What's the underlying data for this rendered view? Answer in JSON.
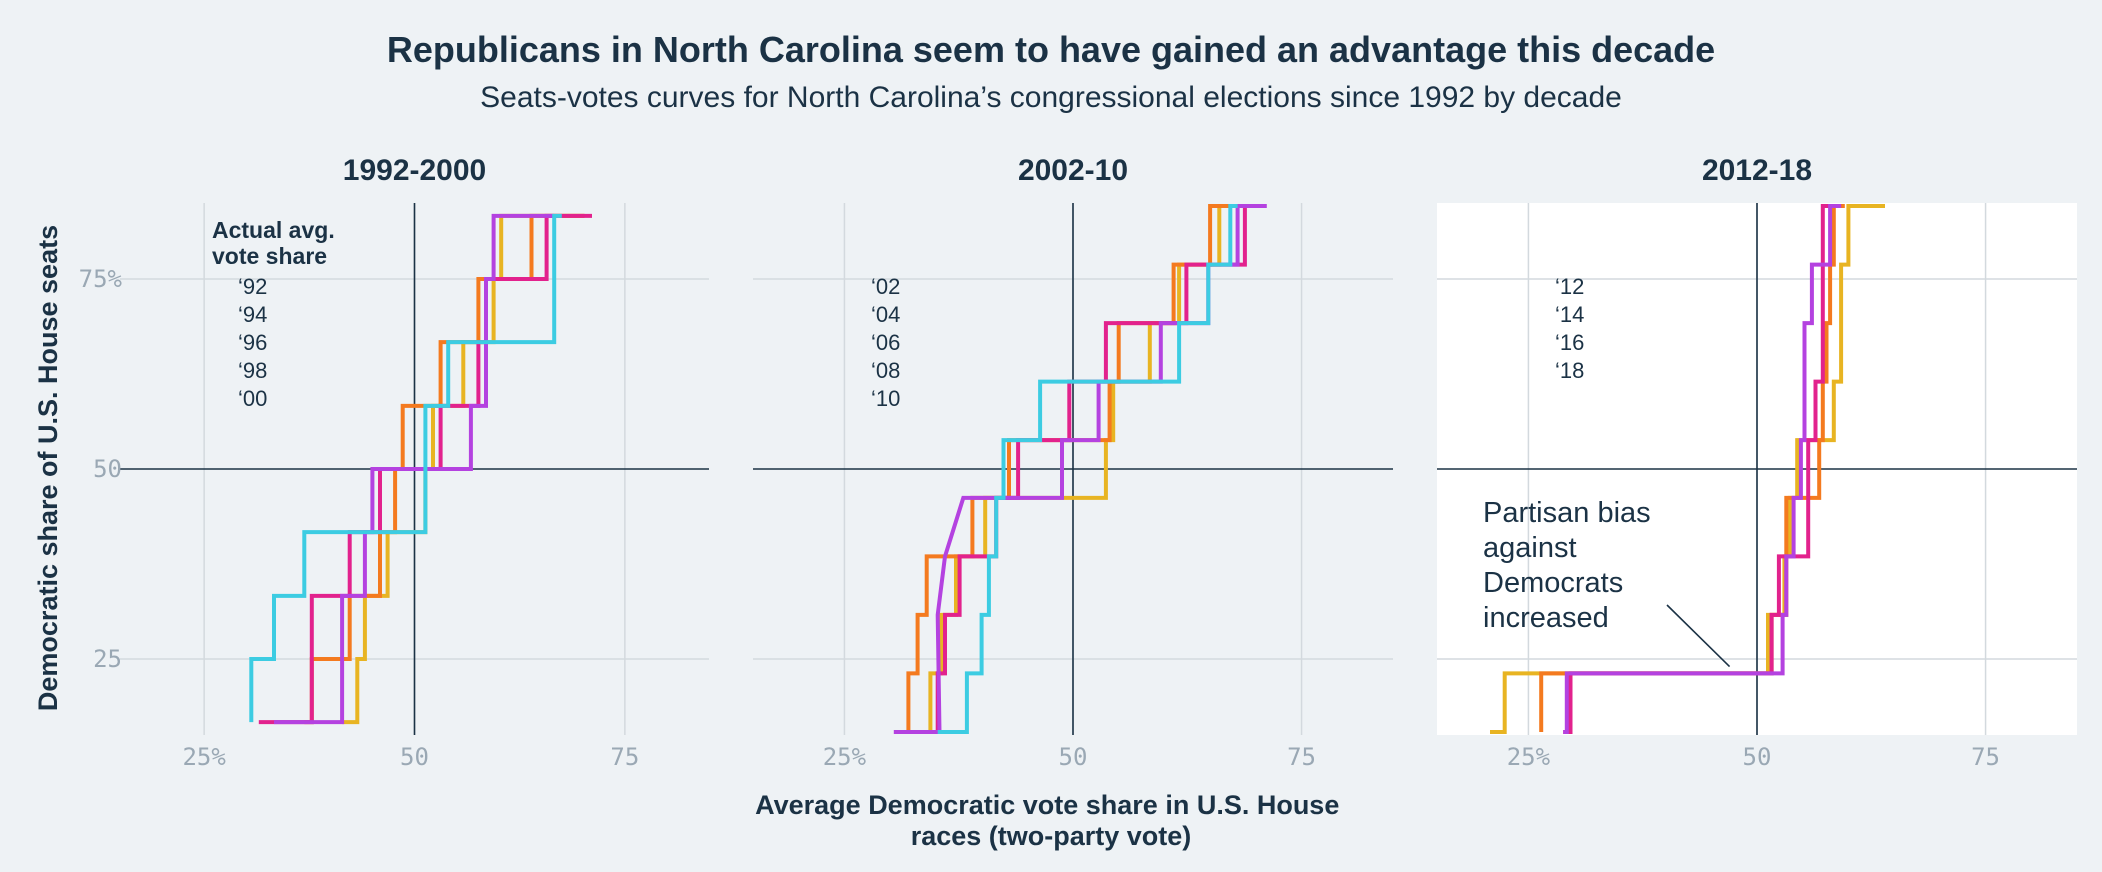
{
  "chart_data": {
    "type": "line",
    "title": "Republicans in North Carolina seem to have gained an advantage this decade",
    "subtitle": "Seats-votes curves for North Carolina’s congressional elections since 1992 by decade",
    "xlabel_lines": [
      "Average Democratic vote share in U.S. House",
      "races (two-party vote)"
    ],
    "ylabel": "Democratic share of U.S. House seats",
    "xlim": [
      15,
      85
    ],
    "ylim": [
      15,
      85
    ],
    "x_ticks": [
      25,
      50,
      75
    ],
    "x_tick_labels": [
      "25%",
      "50",
      "75"
    ],
    "y_ticks": [
      25,
      50,
      75
    ],
    "y_tick_labels": [
      "25",
      "50",
      "75%"
    ],
    "legend_title_lines": [
      "Actual avg.",
      "vote share"
    ],
    "colors": {
      "background": "#eef2f5",
      "highlight_panel": "#ffffff",
      "grid": "#d3d9de",
      "reference": "#1b3245",
      "yellow": "#e8b422",
      "orange": "#f47a1f",
      "magenta": "#e2228d",
      "purple": "#b442e0",
      "cyan": "#3ccce2"
    },
    "panels": [
      {
        "title": "1992-2000",
        "highlight": false,
        "show_legend_title": true,
        "series": [
          {
            "name": "‘92",
            "color": "#e8b422",
            "x": [
              41.4,
              41.4,
              43.2,
              43.2,
              44.1,
              44.1,
              46.8,
              46.8,
              51.3,
              51.3,
              52.2,
              52.2,
              55.8,
              55.8,
              59.4,
              59.4,
              60.3,
              60.3,
              65.7,
              65.7,
              70.2
            ],
            "y": [
              16.7,
              16.7,
              16.7,
              25,
              25,
              33.3,
              33.3,
              41.7,
              41.7,
              50,
              50,
              58.3,
              58.3,
              66.7,
              66.7,
              75,
              75,
              83.3,
              83.3,
              83.3,
              83.3
            ]
          },
          {
            "name": "‘94",
            "color": "#f47a1f",
            "x": [
              36.9,
              36.9,
              37.8,
              37.8,
              42.3,
              42.3,
              45.9,
              45.9,
              47.7,
              47.7,
              48.6,
              48.6,
              53.1,
              53.1,
              57.6,
              57.6,
              63.9,
              63.9,
              67.5,
              67.5,
              70.2
            ],
            "y": [
              16.7,
              16.7,
              16.7,
              25,
              25,
              33.3,
              33.3,
              41.7,
              41.7,
              50,
              50,
              58.3,
              58.3,
              66.7,
              66.7,
              75,
              75,
              83.3,
              83.3,
              83.3,
              83.3
            ]
          },
          {
            "name": "‘96",
            "color": "#e2228d",
            "x": [
              31.5,
              37.8,
              37.8,
              42.3,
              42.3,
              45.9,
              45.9,
              47.7,
              47.7,
              53.1,
              53.1,
              57.6,
              57.6,
              58.5,
              58.5,
              63.9,
              63.9,
              65.7,
              65.7,
              71.1
            ],
            "y": [
              16.7,
              16.7,
              33.3,
              33.3,
              41.7,
              41.7,
              50,
              50,
              50,
              50,
              58.3,
              58.3,
              66.7,
              66.7,
              75,
              75,
              75,
              75,
              83.3,
              83.3
            ]
          },
          {
            "name": "‘98",
            "color": "#b442e0",
            "x": [
              33.3,
              41.4,
              41.4,
              42.3,
              42.3,
              44.1,
              44.1,
              45.0,
              45.0,
              51.3,
              51.3,
              54.9,
              54.9,
              56.7,
              56.7,
              58.5,
              58.5,
              59.4,
              59.4,
              66.6
            ],
            "y": [
              16.7,
              16.7,
              33.3,
              33.3,
              33.3,
              33.3,
              41.7,
              41.7,
              50,
              50,
              50,
              50,
              50,
              50,
              58.3,
              58.3,
              75,
              75,
              83.3,
              83.3
            ]
          },
          {
            "name": "‘00",
            "color": "#3ccce2",
            "x": [
              30.6,
              30.6,
              33.3,
              33.3,
              36.9,
              36.9,
              41.4,
              41.4,
              51.3,
              51.3,
              51.3,
              51.3,
              54.0,
              54.0,
              58.5,
              58.5,
              66.6,
              66.6,
              67.5
            ],
            "y": [
              16.7,
              25,
              25,
              33.3,
              33.3,
              41.7,
              41.7,
              41.7,
              41.7,
              50,
              50,
              58.3,
              58.3,
              66.7,
              66.7,
              66.7,
              66.7,
              83.3,
              83.3
            ]
          }
        ]
      },
      {
        "title": "2002-10",
        "highlight": false,
        "show_legend_title": false,
        "series": [
          {
            "name": "‘02",
            "color": "#e8b422",
            "x": [
              34.4,
              34.4,
              35.6,
              35.6,
              37.2,
              37.2,
              40.4,
              40.4,
              53.6,
              53.6,
              54.4,
              54.4,
              58.4,
              58.4,
              61.6,
              61.6,
              64.0,
              64.0,
              66.0,
              66.0,
              67.6,
              67.6,
              69.6
            ],
            "y": [
              15.4,
              23.1,
              23.1,
              30.8,
              30.8,
              38.5,
              38.5,
              46.2,
              46.2,
              53.8,
              53.8,
              61.5,
              61.5,
              69.2,
              69.2,
              76.9,
              76.9,
              76.9,
              76.9,
              84.6,
              84.6,
              84.6,
              84.6
            ]
          },
          {
            "name": "‘04",
            "color": "#f47a1f",
            "x": [
              32.0,
              32.0,
              33.0,
              33.0,
              34.0,
              34.0,
              39.0,
              39.0,
              43.0,
              43.0,
              54.0,
              54.0,
              55.0,
              55.0,
              61.0,
              61.0,
              65.0,
              65.0,
              67.0,
              67.0,
              69.0
            ],
            "y": [
              15.4,
              23.1,
              23.1,
              30.8,
              30.8,
              38.5,
              38.5,
              46.2,
              46.2,
              53.8,
              53.8,
              61.5,
              61.5,
              69.2,
              69.2,
              76.9,
              76.9,
              84.6,
              84.6,
              84.6,
              84.6
            ]
          },
          {
            "name": "‘06",
            "color": "#e2228d",
            "x": [
              35.2,
              35.2,
              36.0,
              36.0,
              37.6,
              37.6,
              41.6,
              41.6,
              44.0,
              44.0,
              49.6,
              49.6,
              53.6,
              53.6,
              59.2,
              59.2,
              62.4,
              62.4,
              63.2,
              63.2,
              68.8,
              68.8,
              70.0
            ],
            "y": [
              15.4,
              23.1,
              23.1,
              30.8,
              30.8,
              38.5,
              38.5,
              46.2,
              46.2,
              53.8,
              53.8,
              61.5,
              61.5,
              69.2,
              69.2,
              69.2,
              69.2,
              76.9,
              76.9,
              76.9,
              76.9,
              84.6,
              84.6
            ]
          },
          {
            "name": "‘08",
            "color": "#b442e0",
            "x": [
              30.4,
              35.4,
              35.4,
              35.2,
              35.2,
              36.0,
              36.0,
              38.0,
              38.0,
              48.8,
              48.8,
              52.8,
              52.8,
              59.6,
              59.6,
              61.2,
              61.2,
              64.8,
              64.8,
              68.0,
              68.0,
              71.2
            ],
            "y": [
              15.4,
              15.4,
              15.4,
              30.8,
              30.8,
              38.5,
              38.5,
              46.2,
              46.2,
              46.2,
              53.8,
              53.8,
              61.5,
              61.5,
              69.2,
              69.2,
              69.2,
              69.2,
              76.9,
              76.9,
              84.6,
              84.6
            ]
          },
          {
            "name": "‘10",
            "color": "#3ccce2",
            "x": [
              35.2,
              38.4,
              38.4,
              40.0,
              40.0,
              40.8,
              40.8,
              41.6,
              41.6,
              42.4,
              42.4,
              46.4,
              46.4,
              60.8,
              60.8,
              61.6,
              61.6,
              63.2,
              63.2,
              64.8,
              64.8,
              67.2,
              67.2,
              68.0
            ],
            "y": [
              15.4,
              15.4,
              23.1,
              23.1,
              30.8,
              30.8,
              38.5,
              38.5,
              46.2,
              46.2,
              53.8,
              53.8,
              61.5,
              61.5,
              61.5,
              61.5,
              69.2,
              69.2,
              69.2,
              69.2,
              76.9,
              76.9,
              84.6,
              84.6
            ]
          }
        ]
      },
      {
        "title": "2012-18",
        "highlight": true,
        "show_legend_title": false,
        "series": [
          {
            "name": "‘12",
            "color": "#e8b422",
            "x": [
              20.8,
              22.4,
              22.4,
              51.2,
              51.2,
              53.0,
              53.0,
              53.6,
              53.6,
              54.0,
              54.0,
              54.4,
              54.4,
              58.4,
              58.4,
              59.2,
              59.2,
              60.0,
              60.0,
              64.0
            ],
            "y": [
              15.4,
              15.4,
              23.1,
              23.1,
              30.8,
              30.8,
              38.5,
              38.5,
              46.2,
              46.2,
              46.2,
              46.2,
              53.8,
              53.8,
              61.5,
              61.5,
              76.9,
              76.9,
              84.6,
              84.6
            ]
          },
          {
            "name": "‘14",
            "color": "#f47a1f",
            "x": [
              26.4,
              26.4,
              51.6,
              51.6,
              53.2,
              53.2,
              56.8,
              56.8,
              57.2,
              57.2,
              57.6,
              57.6,
              58.0,
              58.0,
              58.4,
              58.4,
              58.8,
              58.8,
              59.6
            ],
            "y": [
              15.4,
              23.1,
              23.1,
              30.8,
              30.8,
              46.2,
              46.2,
              53.8,
              53.8,
              61.5,
              61.5,
              69.2,
              69.2,
              76.9,
              76.9,
              84.6,
              84.6,
              84.6,
              84.6
            ]
          },
          {
            "name": "‘16",
            "color": "#e2228d",
            "x": [
              28.8,
              28.8,
              29.6,
              29.6,
              51.6,
              51.6,
              52.4,
              52.4,
              55.6,
              55.6,
              56.4,
              56.4,
              57.2,
              57.2,
              58.0,
              58.0,
              59.2
            ],
            "y": [
              15.4,
              15.4,
              15.4,
              23.1,
              23.1,
              30.8,
              30.8,
              38.5,
              38.5,
              53.8,
              53.8,
              61.5,
              61.5,
              84.6,
              84.6,
              84.6,
              84.6
            ]
          },
          {
            "name": "‘18",
            "color": "#b442e0",
            "x": [
              28.8,
              29.2,
              29.2,
              52.8,
              52.8,
              53.2,
              53.2,
              54.0,
              54.0,
              54.8,
              54.8,
              55.2,
              55.2,
              56.0,
              56.0,
              58.0,
              58.0,
              59.2
            ],
            "y": [
              15.4,
              15.4,
              23.1,
              23.1,
              30.8,
              30.8,
              38.5,
              38.5,
              46.2,
              46.2,
              53.8,
              53.8,
              69.2,
              69.2,
              76.9,
              76.9,
              84.6,
              84.6
            ]
          }
        ],
        "annotation": {
          "lines": [
            "Partisan bias",
            "against",
            "Democrats",
            "increased"
          ],
          "arrow_to": [
            47.0,
            24.0
          ]
        }
      }
    ]
  }
}
